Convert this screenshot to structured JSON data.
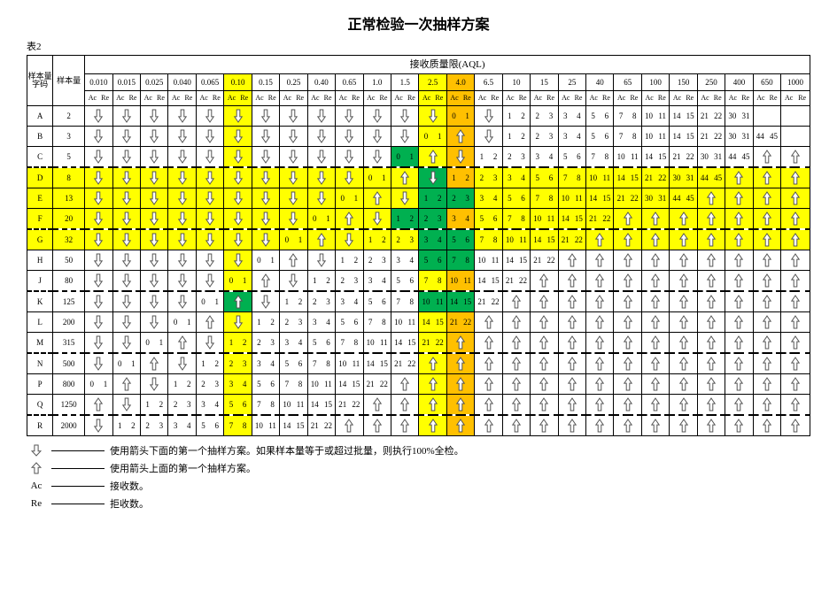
{
  "title": "正常检验一次抽样方案",
  "table_label": "表2",
  "headers": {
    "code": "样本量字码",
    "size": "样本量",
    "aql_title": "接收质量限(AQL)",
    "ac": "Ac",
    "re": "Re"
  },
  "aql_levels": [
    "0.010",
    "0.015",
    "0.025",
    "0.040",
    "0.065",
    "0.10",
    "0.15",
    "0.25",
    "0.40",
    "0.65",
    "1.0",
    "1.5",
    "2.5",
    "4.0",
    "6.5",
    "10",
    "15",
    "25",
    "40",
    "65",
    "100",
    "150",
    "250",
    "400",
    "650",
    "1000"
  ],
  "highlight_cols": {
    "5": "y",
    "12": "y",
    "13": "o"
  },
  "highlight_rows": {
    "3": true,
    "4": true,
    "5": true,
    "6": true
  },
  "section_starts": [
    3,
    6,
    9,
    12,
    15
  ],
  "rows": [
    {
      "code": "A",
      "size": 2,
      "cells": [
        "d",
        "d",
        "d",
        "d",
        "d",
        "d",
        "d",
        "d",
        "d",
        "d",
        "d",
        "d",
        "d",
        "0 1",
        "d",
        "1 2",
        "2 3",
        "3 4",
        "5 6",
        "7 8",
        "10 11",
        "14 15",
        "21 22",
        "30 31",
        "",
        ""
      ]
    },
    {
      "code": "B",
      "size": 3,
      "cells": [
        "d",
        "d",
        "d",
        "d",
        "d",
        "d",
        "d",
        "d",
        "d",
        "d",
        "d",
        "d",
        "0 1",
        "u",
        "d",
        "1 2",
        "2 3",
        "3 4",
        "5 6",
        "7 8",
        "10 11",
        "14 15",
        "21 22",
        "30 31",
        "44 45",
        ""
      ]
    },
    {
      "code": "C",
      "size": 5,
      "cells": [
        "d",
        "d",
        "d",
        "d",
        "d",
        "d",
        "d",
        "d",
        "d",
        "d",
        "d",
        "0 1",
        "u",
        "d",
        "1 2",
        "2 3",
        "3 4",
        "5 6",
        "7 8",
        "10 11",
        "14 15",
        "21 22",
        "30 31",
        "44 45",
        "u",
        "u"
      ]
    },
    {
      "code": "D",
      "size": 8,
      "cells": [
        "d",
        "d",
        "d",
        "d",
        "d",
        "d",
        "d",
        "d",
        "d",
        "d",
        "0 1",
        "u",
        "d",
        "1 2",
        "2 3",
        "3 4",
        "5 6",
        "7 8",
        "10 11",
        "14 15",
        "21 22",
        "30 31",
        "44 45",
        "u",
        "u",
        "u"
      ]
    },
    {
      "code": "E",
      "size": 13,
      "cells": [
        "d",
        "d",
        "d",
        "d",
        "d",
        "d",
        "d",
        "d",
        "d",
        "0 1",
        "u",
        "d",
        "1 2",
        "2 3",
        "3 4",
        "5 6",
        "7 8",
        "10 11",
        "14 15",
        "21 22",
        "30 31",
        "44 45",
        "u",
        "u",
        "u",
        "u"
      ]
    },
    {
      "code": "F",
      "size": 20,
      "cells": [
        "d",
        "d",
        "d",
        "d",
        "d",
        "d",
        "d",
        "d",
        "0 1",
        "u",
        "d",
        "1 2",
        "2 3",
        "3 4",
        "5 6",
        "7 8",
        "10 11",
        "14 15",
        "21 22",
        "u",
        "u",
        "u",
        "u",
        "u",
        "u",
        "u"
      ]
    },
    {
      "code": "G",
      "size": 32,
      "cells": [
        "d",
        "d",
        "d",
        "d",
        "d",
        "d",
        "d",
        "0 1",
        "u",
        "d",
        "1 2",
        "2 3",
        "3 4",
        "5 6",
        "7 8",
        "10 11",
        "14 15",
        "21 22",
        "u",
        "u",
        "u",
        "u",
        "u",
        "u",
        "u",
        "u"
      ]
    },
    {
      "code": "H",
      "size": 50,
      "cells": [
        "d",
        "d",
        "d",
        "d",
        "d",
        "d",
        "0 1",
        "u",
        "d",
        "1 2",
        "2 3",
        "3 4",
        "5 6",
        "7 8",
        "10 11",
        "14 15",
        "21 22",
        "u",
        "u",
        "u",
        "u",
        "u",
        "u",
        "u",
        "u",
        "u"
      ]
    },
    {
      "code": "J",
      "size": 80,
      "cells": [
        "d",
        "d",
        "d",
        "d",
        "d",
        "0 1",
        "u",
        "d",
        "1 2",
        "2 3",
        "3 4",
        "5 6",
        "7 8",
        "10 11",
        "14 15",
        "21 22",
        "u",
        "u",
        "u",
        "u",
        "u",
        "u",
        "u",
        "u",
        "u",
        "u"
      ]
    },
    {
      "code": "K",
      "size": 125,
      "cells": [
        "d",
        "d",
        "d",
        "d",
        "0 1",
        "u",
        "d",
        "1 2",
        "2 3",
        "3 4",
        "5 6",
        "7 8",
        "10 11",
        "14 15",
        "21 22",
        "u",
        "u",
        "u",
        "u",
        "u",
        "u",
        "u",
        "u",
        "u",
        "u",
        "u"
      ]
    },
    {
      "code": "L",
      "size": 200,
      "cells": [
        "d",
        "d",
        "d",
        "0 1",
        "u",
        "d",
        "1 2",
        "2 3",
        "3 4",
        "5 6",
        "7 8",
        "10 11",
        "14 15",
        "21 22",
        "u",
        "u",
        "u",
        "u",
        "u",
        "u",
        "u",
        "u",
        "u",
        "u",
        "u",
        "u"
      ]
    },
    {
      "code": "M",
      "size": 315,
      "cells": [
        "d",
        "d",
        "0 1",
        "u",
        "d",
        "1 2",
        "2 3",
        "3 4",
        "5 6",
        "7 8",
        "10 11",
        "14 15",
        "21 22",
        "u",
        "u",
        "u",
        "u",
        "u",
        "u",
        "u",
        "u",
        "u",
        "u",
        "u",
        "u",
        "u"
      ]
    },
    {
      "code": "N",
      "size": 500,
      "cells": [
        "d",
        "0 1",
        "u",
        "d",
        "1 2",
        "2 3",
        "3 4",
        "5 6",
        "7 8",
        "10 11",
        "14 15",
        "21 22",
        "u",
        "u",
        "u",
        "u",
        "u",
        "u",
        "u",
        "u",
        "u",
        "u",
        "u",
        "u",
        "u",
        "u"
      ]
    },
    {
      "code": "P",
      "size": 800,
      "cells": [
        "0 1",
        "u",
        "d",
        "1 2",
        "2 3",
        "3 4",
        "5 6",
        "7 8",
        "10 11",
        "14 15",
        "21 22",
        "u",
        "u",
        "u",
        "u",
        "u",
        "u",
        "u",
        "u",
        "u",
        "u",
        "u",
        "u",
        "u",
        "u",
        "u"
      ]
    },
    {
      "code": "Q",
      "size": 1250,
      "cells": [
        "u",
        "d",
        "1 2",
        "2 3",
        "3 4",
        "5 6",
        "7 8",
        "10 11",
        "14 15",
        "21 22",
        "u",
        "u",
        "u",
        "u",
        "u",
        "u",
        "u",
        "u",
        "u",
        "u",
        "u",
        "u",
        "u",
        "u",
        "u",
        "u"
      ]
    },
    {
      "code": "R",
      "size": 2000,
      "cells": [
        "d",
        "1 2",
        "2 3",
        "3 4",
        "5 6",
        "7 8",
        "10 11",
        "14 15",
        "21 22",
        "u",
        "u",
        "u",
        "u",
        "u",
        "u",
        "u",
        "u",
        "u",
        "u",
        "u",
        "u",
        "u",
        "u",
        "u",
        "u",
        "u"
      ]
    }
  ],
  "green_cells": [
    [
      2,
      11
    ],
    [
      3,
      12
    ],
    [
      4,
      12
    ],
    [
      4,
      13
    ],
    [
      5,
      11
    ],
    [
      5,
      12
    ],
    [
      6,
      12
    ],
    [
      6,
      13
    ],
    [
      7,
      12
    ],
    [
      7,
      13
    ],
    [
      9,
      5
    ],
    [
      9,
      12
    ],
    [
      9,
      13
    ]
  ],
  "legend": [
    {
      "sym": "down",
      "text": "使用箭头下面的第一个抽样方案。如果样本量等于或超过批量，则执行100%全检。"
    },
    {
      "sym": "up",
      "text": "使用箭头上面的第一个抽样方案。"
    },
    {
      "sym": "Ac",
      "text": "接收数。"
    },
    {
      "sym": "Re",
      "text": "拒收数。"
    }
  ],
  "colors": {
    "yellow": "#ffff00",
    "orange": "#ffc000",
    "green": "#00b050",
    "arrow_fill": "#ffffff",
    "arrow_stroke": "#555555"
  }
}
